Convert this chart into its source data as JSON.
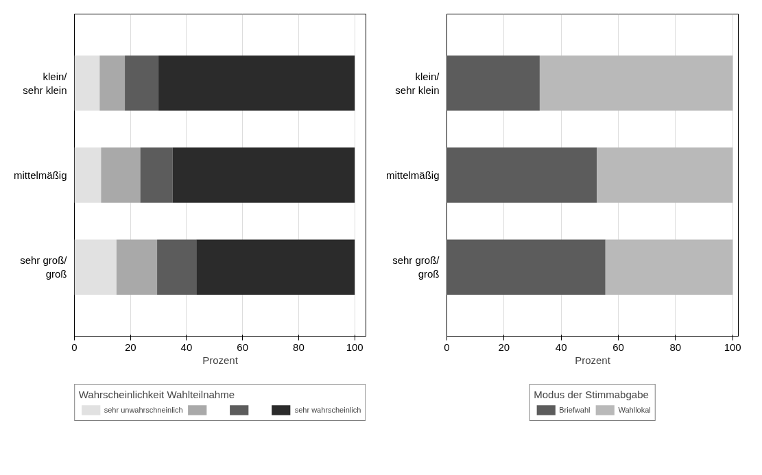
{
  "chart_data": [
    {
      "type": "bar",
      "orientation": "horizontal",
      "stacked": true,
      "xlabel": "Prozent",
      "legend_title": "Wahrscheinlichkeit Wahlteilnahme",
      "legend": "bottom",
      "grid": "x",
      "categories": [
        "klein/\nsehr klein",
        "mittelmäßig",
        "sehr groß/\ngroß"
      ],
      "xlim": [
        0,
        104
      ],
      "xticks": [
        0,
        20,
        40,
        60,
        80,
        100
      ],
      "series": [
        {
          "name": "sehr unwahrschneinlich",
          "color": "#e1e1e1",
          "values": [
            9,
            9.5,
            15
          ]
        },
        {
          "name": null,
          "color": "#a9a9a9",
          "values": [
            9,
            14,
            14.5
          ]
        },
        {
          "name": null,
          "color": "#5c5c5c",
          "values": [
            12,
            11.5,
            14
          ]
        },
        {
          "name": "sehr wahrscheinlich",
          "color": "#2b2b2b",
          "values": [
            70,
            65,
            56.5
          ]
        }
      ]
    },
    {
      "type": "bar",
      "orientation": "horizontal",
      "stacked": true,
      "xlabel": "Prozent",
      "legend_title": "Modus der Stimmabgabe",
      "legend": "bottom",
      "grid": "x",
      "categories": [
        "klein/\nsehr klein",
        "mittelmäßig",
        "sehr groß/\ngroß"
      ],
      "xlim": [
        0,
        102
      ],
      "xticks": [
        0,
        20,
        40,
        60,
        80,
        100
      ],
      "series": [
        {
          "name": "Briefwahl",
          "color": "#5c5c5c",
          "values": [
            32.5,
            52.5,
            55.5
          ]
        },
        {
          "name": "Wahllokal",
          "color": "#b9b9b9",
          "values": [
            67.5,
            47.5,
            44.5
          ]
        }
      ]
    }
  ]
}
